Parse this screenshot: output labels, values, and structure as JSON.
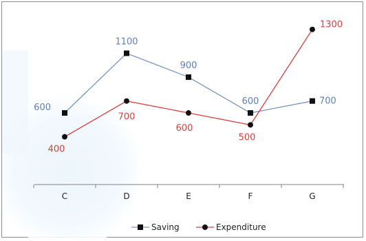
{
  "chart_data": {
    "type": "line",
    "categories": [
      "C",
      "D",
      "E",
      "F",
      "G"
    ],
    "series": [
      {
        "name": "Saving",
        "values": [
          600,
          1100,
          900,
          600,
          700
        ],
        "color": "#7a94c4",
        "marker": "square",
        "label_color": "#5b7fbe"
      },
      {
        "name": "Expenditure",
        "values": [
          400,
          700,
          600,
          500,
          1300
        ],
        "color": "#e03c3c",
        "marker": "circle",
        "label_color": "#e03c3c"
      }
    ],
    "ylim": [
      0,
      1400
    ],
    "y_axis_visible": false,
    "grid": false,
    "legend_position": "bottom"
  }
}
